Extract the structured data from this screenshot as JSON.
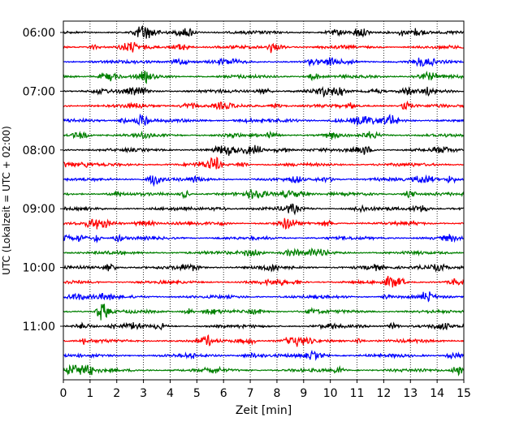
{
  "chart_data": {
    "type": "line",
    "title": "",
    "xlabel": "Zeit  [min]",
    "ylabel": "UTC (Lokalzeit = UTC + 02:00)",
    "xlim": [
      0,
      15
    ],
    "x_ticks": [
      "0",
      "1",
      "2",
      "3",
      "4",
      "5",
      "6",
      "7",
      "8",
      "9",
      "10",
      "11",
      "12",
      "13",
      "14",
      "15"
    ],
    "y_ticks": [
      "06:00",
      "07:00",
      "08:00",
      "09:00",
      "10:00",
      "11:00"
    ],
    "grid": "vertical dotted",
    "trace_interval_minutes": 15,
    "trace_start": "06:00",
    "trace_count": 24,
    "trace_colors": [
      "#000000",
      "#ff0000",
      "#0000ff",
      "#008000"
    ]
  }
}
